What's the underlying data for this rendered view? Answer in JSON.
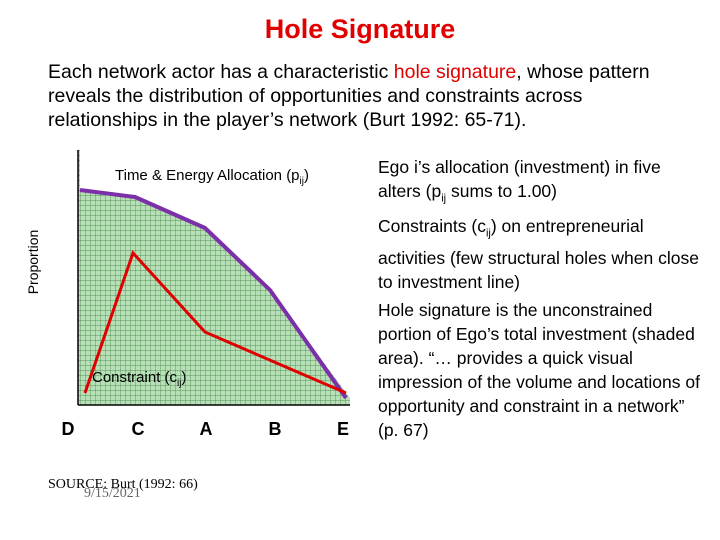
{
  "title": "Hole Signature",
  "intro": {
    "before": "Each network actor has a characteristic ",
    "highlight": "hole signature",
    "after": ", whose pattern reveals the distribution of opportunities and constraints across relationships in the player’s network (Burt 1992: 65-71)."
  },
  "chart": {
    "y_label": "Proportion",
    "allocation_label": {
      "before": "Time & Energy Allocation (p",
      "sub": "ij",
      "after": ")"
    },
    "constraint_label": {
      "before": "Constraint (c",
      "sub": "ij",
      "after": ")"
    },
    "categories": [
      "D",
      "C",
      "A",
      "B",
      "E"
    ],
    "source": "SOURCE: Burt (1992: 66)",
    "date": "9/15/2021"
  },
  "notes": [
    {
      "before": "Ego i’s allocation (investment) in five alters (p",
      "sub": "ij",
      "after": " sums to 1.00)"
    },
    {
      "before": "Constraints (c",
      "sub": "ij",
      "after": ") on entrepreneurial activities (few structural holes when close to investment line)"
    },
    {
      "before": "Hole signature is the unconstrained portion of Ego’s total investment (shaded area). “… provides a quick visual impression of the volume and locations of opportunity and constraint in a network” (p. 67)",
      "sub": "",
      "after": ""
    }
  ]
}
